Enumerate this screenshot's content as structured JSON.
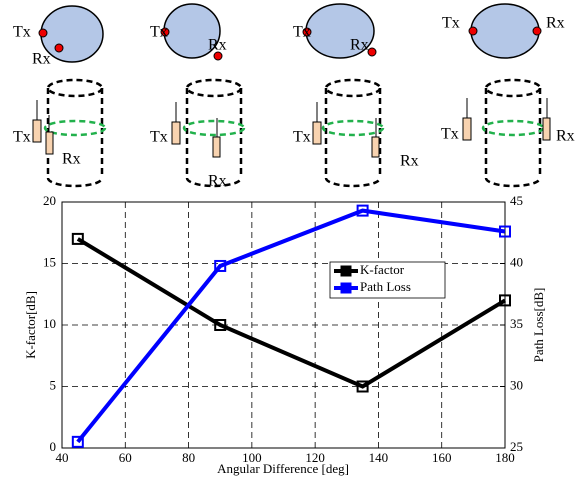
{
  "chart_data": {
    "type": "line",
    "annotations": [
      "Tx",
      "Rx",
      "Tx",
      "Rx",
      "Tx",
      "Rx",
      "Tx",
      "Rx",
      "Tx",
      "Rx",
      "Tx",
      "Rx",
      "Tx",
      "Rx",
      "Tx",
      "Rx"
    ],
    "xlabel": "Angular Difference [deg]",
    "ylabel": "K-factor[dB]",
    "y2label": "Path Loss[dB]",
    "x": [
      45,
      90,
      135,
      180
    ],
    "series": [
      {
        "name": "K-factor",
        "color": "#000000",
        "values": [
          17,
          10,
          5,
          12
        ]
      },
      {
        "name": "Path Loss",
        "color": "#0000ff",
        "axis": "y2",
        "values": [
          25.5,
          39.8,
          44.3,
          42.6
        ]
      }
    ],
    "xlim": [
      40,
      180
    ],
    "xticks": [
      40,
      60,
      80,
      100,
      120,
      140,
      160,
      180
    ],
    "ylim": [
      0,
      20
    ],
    "yticks": [
      0,
      5,
      10,
      15,
      20
    ],
    "y2lim": [
      25,
      45
    ],
    "y2ticks": [
      25,
      30,
      35,
      40,
      45
    ],
    "grid": true,
    "legend": "center-right"
  }
}
